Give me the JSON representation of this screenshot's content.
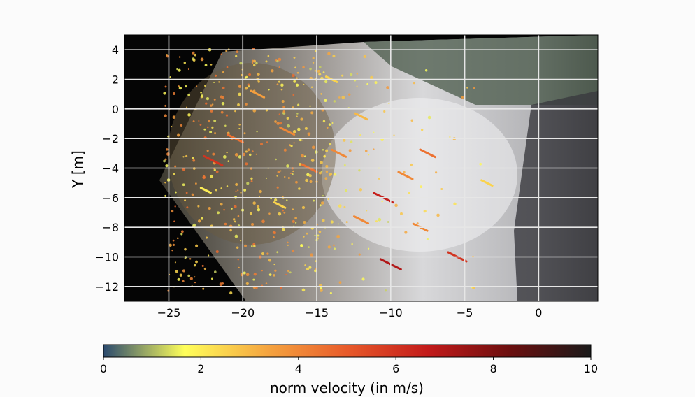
{
  "chart_data": [
    {
      "type": "scatter",
      "title": "",
      "xlabel": "",
      "ylabel": "Y [m]",
      "xlim": [
        -28,
        4
      ],
      "ylim": [
        -13,
        5
      ],
      "xticks": [
        -25,
        -20,
        -15,
        -10,
        -5,
        0
      ],
      "yticks": [
        4,
        2,
        0,
        -2,
        -4,
        -6,
        -8,
        -10,
        -12
      ],
      "xtick_labels": [
        "−25",
        "−20",
        "−15",
        "−10",
        "−5",
        "0"
      ],
      "ytick_labels": [
        "4",
        "2",
        "0",
        "−2",
        "−4",
        "−6",
        "−8",
        "−10",
        "−12"
      ],
      "grid": true,
      "background": "orthorectified river surface image with velocity vectors",
      "series": [
        {
          "points": [
            {
              "x": -22.0,
              "y": -3.5,
              "v": 6.0
            },
            {
              "x": -20.5,
              "y": -2.0,
              "v": 4.5
            },
            {
              "x": -19.0,
              "y": 1.0,
              "v": 3.5
            },
            {
              "x": -17.0,
              "y": -1.5,
              "v": 4.0
            },
            {
              "x": -15.5,
              "y": -4.0,
              "v": 4.5
            },
            {
              "x": -13.5,
              "y": -3.0,
              "v": 4.0
            },
            {
              "x": -12.0,
              "y": -0.5,
              "v": 3.0
            },
            {
              "x": -10.5,
              "y": -6.0,
              "v": 6.5
            },
            {
              "x": -9.0,
              "y": -4.5,
              "v": 4.0
            },
            {
              "x": -7.5,
              "y": -3.0,
              "v": 4.5
            },
            {
              "x": -10.0,
              "y": -10.5,
              "v": 7.0
            },
            {
              "x": -5.5,
              "y": -10.0,
              "v": 6.0
            },
            {
              "x": -12.0,
              "y": -7.5,
              "v": 4.0
            },
            {
              "x": -17.5,
              "y": -6.5,
              "v": 2.5
            },
            {
              "x": -22.5,
              "y": -5.5,
              "v": 2.0
            },
            {
              "x": -8.0,
              "y": -8.0,
              "v": 4.0
            },
            {
              "x": -3.5,
              "y": -5.0,
              "v": 2.5
            },
            {
              "x": -14.0,
              "y": 2.0,
              "v": 2.5
            }
          ]
        }
      ]
    },
    {
      "type": "heatmap",
      "title": "",
      "xlabel": "norm velocity (in m/s)",
      "xlim": [
        0,
        10
      ],
      "xticks": [
        0,
        2,
        4,
        6,
        8,
        10
      ],
      "colormap_stops": [
        "#2b4a6e",
        "#ffff5a",
        "#f5a640",
        "#e85a2a",
        "#c21a1a",
        "#6b0f0f",
        "#1a1a1a"
      ]
    }
  ]
}
